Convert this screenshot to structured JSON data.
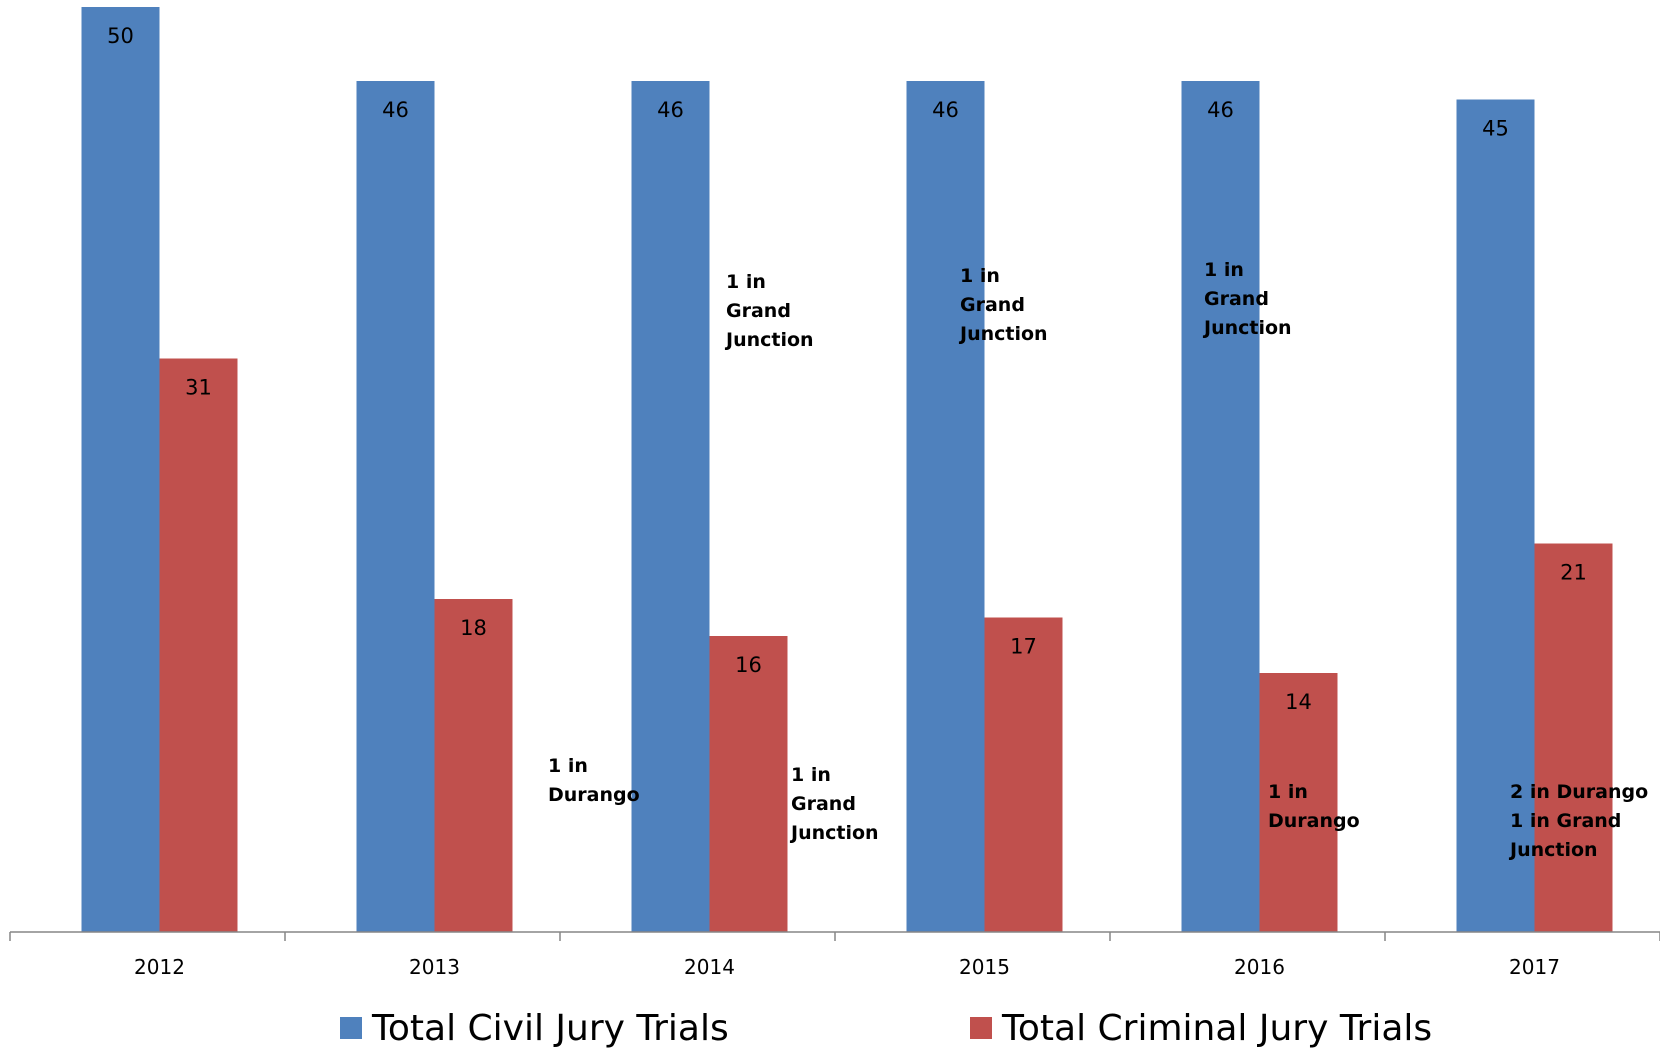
{
  "chart_data": {
    "type": "bar",
    "categories": [
      "2012",
      "2013",
      "2014",
      "2015",
      "2016",
      "2017"
    ],
    "series": [
      {
        "name": "Total Civil Jury Trials",
        "color": "#4F81BD",
        "values": [
          50,
          46,
          46,
          46,
          46,
          45
        ]
      },
      {
        "name": "Total Criminal Jury Trials",
        "color": "#C0504D",
        "values": [
          31,
          18,
          16,
          17,
          14,
          21
        ]
      }
    ],
    "ylim": [
      0,
      50
    ],
    "grid": false,
    "legend_position": "bottom",
    "annotations": [
      {
        "category": "2013",
        "lines": [
          "1 in",
          "Durango"
        ]
      },
      {
        "category": "2014",
        "lines": [
          "1 in",
          "Grand",
          "Junction"
        ]
      },
      {
        "category": "2014",
        "lines": [
          "1 in",
          "Grand",
          "Junction"
        ]
      },
      {
        "category": "2015",
        "lines": [
          "1 in",
          "Grand",
          "Junction"
        ]
      },
      {
        "category": "2016",
        "lines": [
          "1 in",
          "Grand",
          "Junction"
        ]
      },
      {
        "category": "2016",
        "lines": [
          "1 in",
          "Durango"
        ]
      },
      {
        "category": "2017",
        "lines": [
          "2 in Durango",
          "1 in Grand",
          "Junction"
        ]
      }
    ]
  }
}
